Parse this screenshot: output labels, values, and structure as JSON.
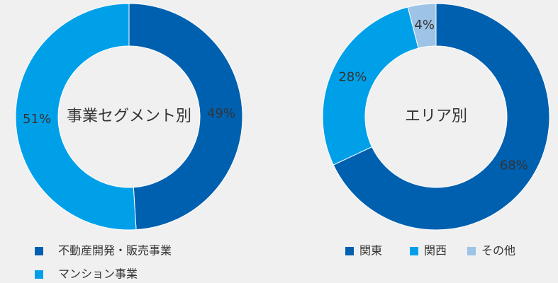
{
  "chart_data": [
    {
      "type": "pie",
      "title": "事業セグメント別",
      "categories": [
        "不動産開発・販売事業",
        "マンション事業"
      ],
      "values": [
        49,
        51
      ],
      "value_labels": [
        "49%",
        "51%"
      ],
      "colors": [
        "#0060b0",
        "#00a0e9"
      ],
      "legend": "bottom-vertical"
    },
    {
      "type": "pie",
      "title": "エリア別",
      "categories": [
        "関東",
        "関西",
        "その他"
      ],
      "values": [
        68,
        28,
        4
      ],
      "value_labels": [
        "68%",
        "28%",
        "4%"
      ],
      "colors": [
        "#0060b0",
        "#00a0e9",
        "#9dc3e6"
      ],
      "legend": "bottom-horizontal"
    }
  ]
}
